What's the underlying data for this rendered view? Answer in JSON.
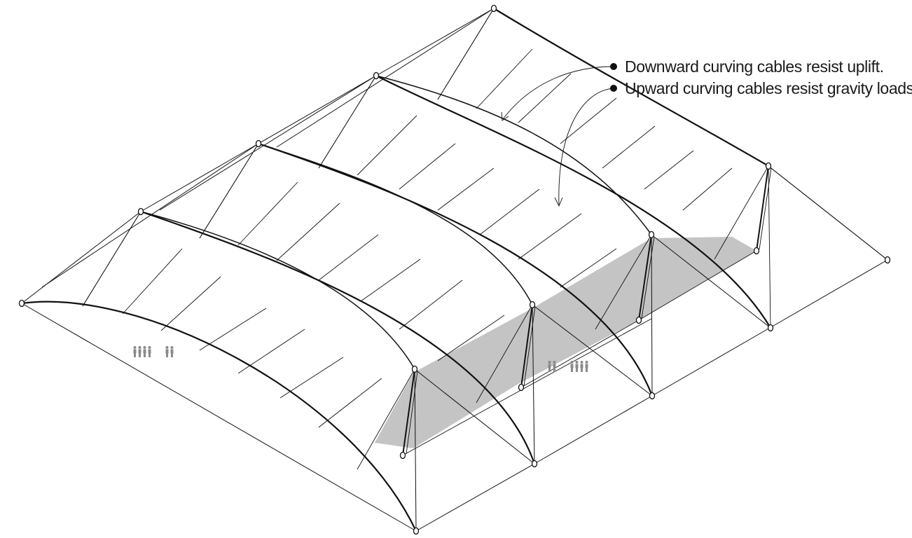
{
  "annotations": {
    "downward": {
      "text": "Downward curving cables resist uplift."
    },
    "upward": {
      "text": "Upward curving cables resist gravity loads."
    }
  }
}
